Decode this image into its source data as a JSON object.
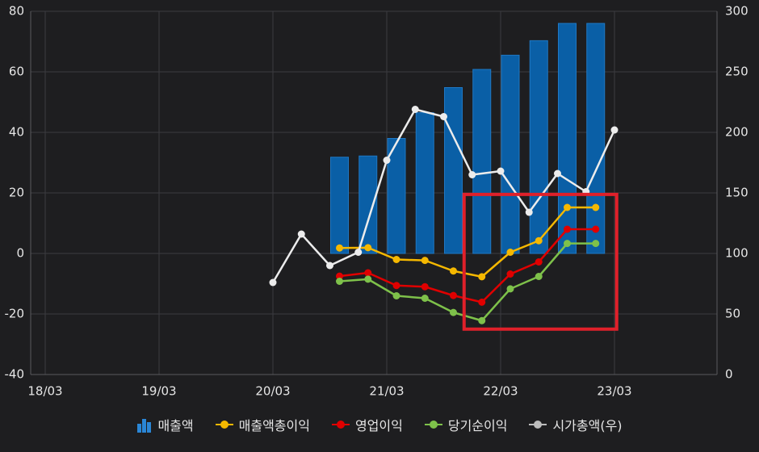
{
  "chart_data": {
    "type": "bar+line",
    "x_tick_labels": [
      "18/03",
      "19/03",
      "20/03",
      "21/03",
      "22/03",
      "23/03"
    ],
    "left_axis": {
      "ylim": [
        -40,
        80
      ],
      "ticks": [
        "80",
        "60",
        "40",
        "20",
        "0",
        "-20",
        "-40"
      ]
    },
    "right_axis": {
      "ylim": [
        0,
        300
      ],
      "ticks": [
        "300",
        "250",
        "200",
        "150",
        "100",
        "50",
        "0"
      ]
    },
    "bar_series": {
      "name": "매출액",
      "color": "#0a5fa6",
      "x": [
        "20/09",
        "20/12",
        "21/03",
        "21/06",
        "21/09",
        "21/12",
        "22/03",
        "22/06",
        "22/09",
        "22/12"
      ],
      "values": [
        31.8,
        32.2,
        38.0,
        46.5,
        54.8,
        60.8,
        65.5,
        70.3,
        76.0,
        76.0
      ]
    },
    "line_series": [
      {
        "name": "매출액총이익",
        "color": "#f5b800",
        "axis": "left",
        "x": [
          "20/09",
          "20/12",
          "21/03",
          "21/06",
          "21/09",
          "21/12",
          "22/03",
          "22/06",
          "22/09",
          "22/12"
        ],
        "values": [
          1.8,
          1.9,
          -2.0,
          -2.3,
          -5.8,
          -7.7,
          0.4,
          4.2,
          15.2,
          15.2
        ]
      },
      {
        "name": "영업이익",
        "color": "#e00000",
        "axis": "left",
        "x": [
          "20/09",
          "20/12",
          "21/03",
          "21/06",
          "21/09",
          "21/12",
          "22/03",
          "22/06",
          "22/09",
          "22/12"
        ],
        "values": [
          -7.5,
          -6.4,
          -10.6,
          -11.0,
          -13.9,
          -16.1,
          -6.8,
          -2.8,
          8.0,
          8.0
        ]
      },
      {
        "name": "당기순이익",
        "color": "#7ec14a",
        "axis": "left",
        "x": [
          "20/09",
          "20/12",
          "21/03",
          "21/06",
          "21/09",
          "21/12",
          "22/03",
          "22/06",
          "22/09",
          "22/12"
        ],
        "values": [
          -9.2,
          -8.5,
          -14.0,
          -14.8,
          -19.5,
          -22.2,
          -11.7,
          -7.6,
          3.3,
          3.3
        ]
      },
      {
        "name": "시가총액(우)",
        "color": "#ececec",
        "axis": "right",
        "x": [
          "20/03",
          "20/06",
          "20/09",
          "20/12",
          "21/03",
          "21/06",
          "21/09",
          "21/12",
          "22/03",
          "22/06",
          "22/09",
          "22/12",
          "23/03"
        ],
        "values": [
          76,
          116,
          90,
          101,
          177,
          219,
          213,
          165,
          168,
          134,
          166,
          151,
          202
        ]
      }
    ],
    "highlight_box": {
      "x_range": [
        "21/12",
        "22/12"
      ],
      "y_range": [
        -25,
        19.5
      ],
      "color": "#e0202a"
    },
    "grid": true,
    "legend_position": "bottom-center"
  }
}
